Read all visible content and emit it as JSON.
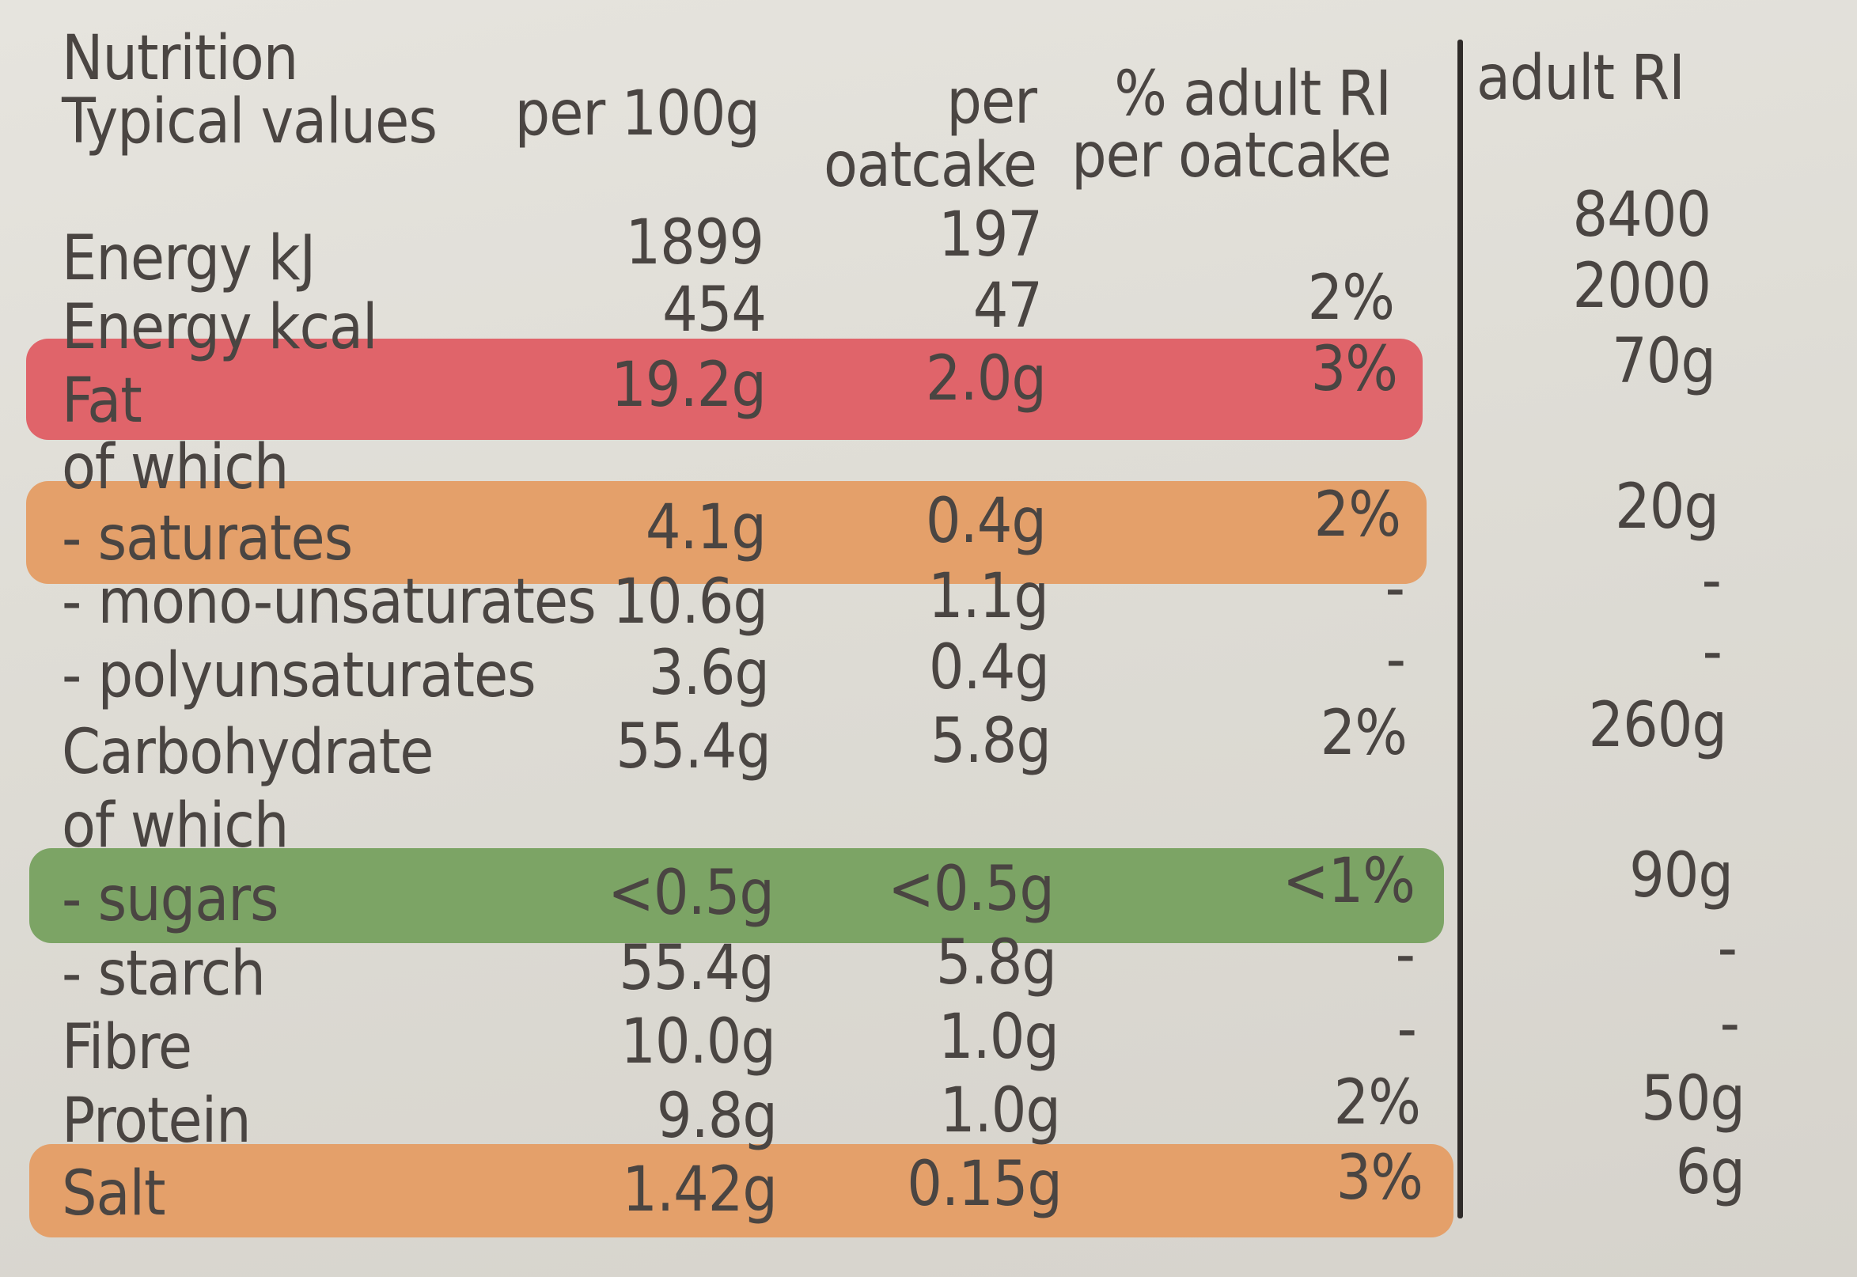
{
  "header": {
    "title": "Nutrition",
    "col_label": "Typical values",
    "col_per100g": "per 100g",
    "col_per_oatcake_1": "per",
    "col_per_oatcake_2": "oatcake",
    "col_ri_pct_1": "% adult RI",
    "col_ri_pct_2": "per oatcake",
    "col_ri": "adult RI"
  },
  "rows": [
    {
      "label": "Energy kJ",
      "per100g": "1899",
      "per_oatcake": "197",
      "ri_pct": "",
      "ri": "8400"
    },
    {
      "label": "Energy kcal",
      "per100g": "454",
      "per_oatcake": "47",
      "ri_pct": "2%",
      "ri": "2000"
    },
    {
      "label": "Fat",
      "per100g": "19.2g",
      "per_oatcake": "2.0g",
      "ri_pct": "3%",
      "ri": "70g",
      "band": "red"
    },
    {
      "label": "of which",
      "per100g": "",
      "per_oatcake": "",
      "ri_pct": "",
      "ri": ""
    },
    {
      "label": "- saturates",
      "per100g": "4.1g",
      "per_oatcake": "0.4g",
      "ri_pct": "2%",
      "ri": "20g",
      "band": "amber"
    },
    {
      "label": "- mono-unsaturates",
      "per100g": "10.6g",
      "per_oatcake": "1.1g",
      "ri_pct": "-",
      "ri": "-"
    },
    {
      "label": "- polyunsaturates",
      "per100g": "3.6g",
      "per_oatcake": "0.4g",
      "ri_pct": "-",
      "ri": "-"
    },
    {
      "label": "Carbohydrate",
      "per100g": "55.4g",
      "per_oatcake": "5.8g",
      "ri_pct": "2%",
      "ri": "260g"
    },
    {
      "label": "of which",
      "per100g": "",
      "per_oatcake": "",
      "ri_pct": "",
      "ri": ""
    },
    {
      "label": "- sugars",
      "per100g": "<0.5g",
      "per_oatcake": "<0.5g",
      "ri_pct": "<1%",
      "ri": "90g",
      "band": "green"
    },
    {
      "label": "- starch",
      "per100g": "55.4g",
      "per_oatcake": "5.8g",
      "ri_pct": "-",
      "ri": "-"
    },
    {
      "label": "Fibre",
      "per100g": "10.0g",
      "per_oatcake": "1.0g",
      "ri_pct": "-",
      "ri": "-"
    },
    {
      "label": "Protein",
      "per100g": "9.8g",
      "per_oatcake": "1.0g",
      "ri_pct": "2%",
      "ri": "50g"
    },
    {
      "label": "Salt",
      "per100g": "1.42g",
      "per_oatcake": "0.15g",
      "ri_pct": "3%",
      "ri": "6g",
      "band": "amber"
    }
  ],
  "colors": {
    "text": "#4a4542",
    "band_red": "#e0646a",
    "band_amber": "#e4a06a",
    "band_green": "#7ca465",
    "background": "#dedcd5"
  }
}
